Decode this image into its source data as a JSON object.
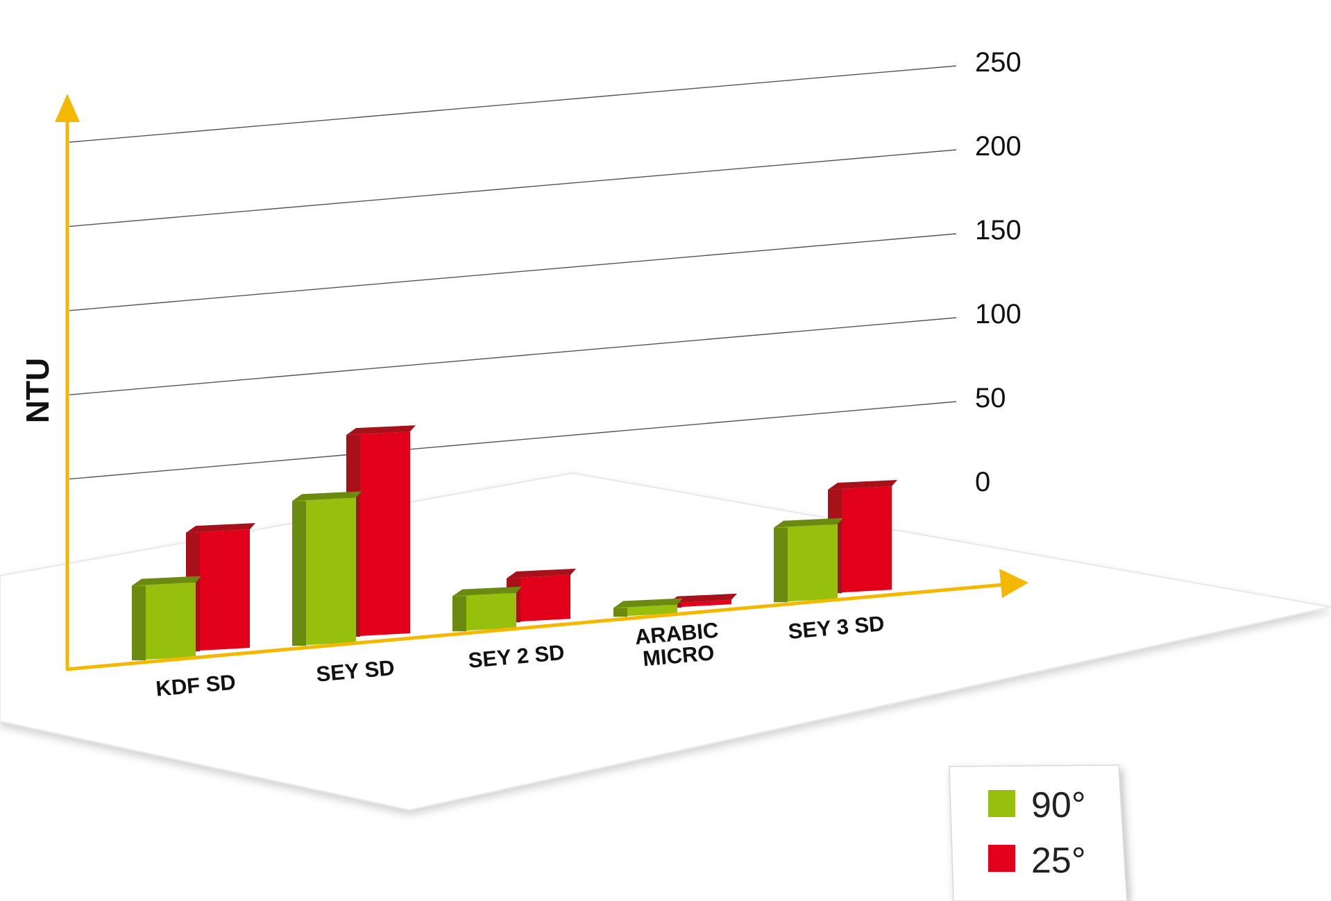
{
  "chart_data": {
    "type": "bar",
    "title": "",
    "xlabel": "",
    "ylabel": "NTU",
    "ylim": [
      0,
      250
    ],
    "yticks": [
      0,
      50,
      100,
      150,
      200,
      250
    ],
    "grid": true,
    "legend": "bottom-right",
    "categories": [
      [
        "KDF SD"
      ],
      [
        "SEY SD"
      ],
      [
        "SEY 2 SD"
      ],
      [
        "ARABIC",
        "MICRO"
      ],
      [
        "SEY 3 SD"
      ]
    ],
    "series": [
      {
        "name": "90°",
        "values": [
          85,
          165,
          40,
          10,
          85
        ]
      },
      {
        "name": "25°",
        "values": [
          135,
          230,
          50,
          5,
          118
        ]
      }
    ],
    "colors": {
      "series_90": "#97bf0d",
      "series_90_side": "#6a8a10",
      "series_25": "#e2001a",
      "series_25_side": "#a8101a",
      "axis": "#f5b800",
      "grid": "#555555"
    }
  }
}
